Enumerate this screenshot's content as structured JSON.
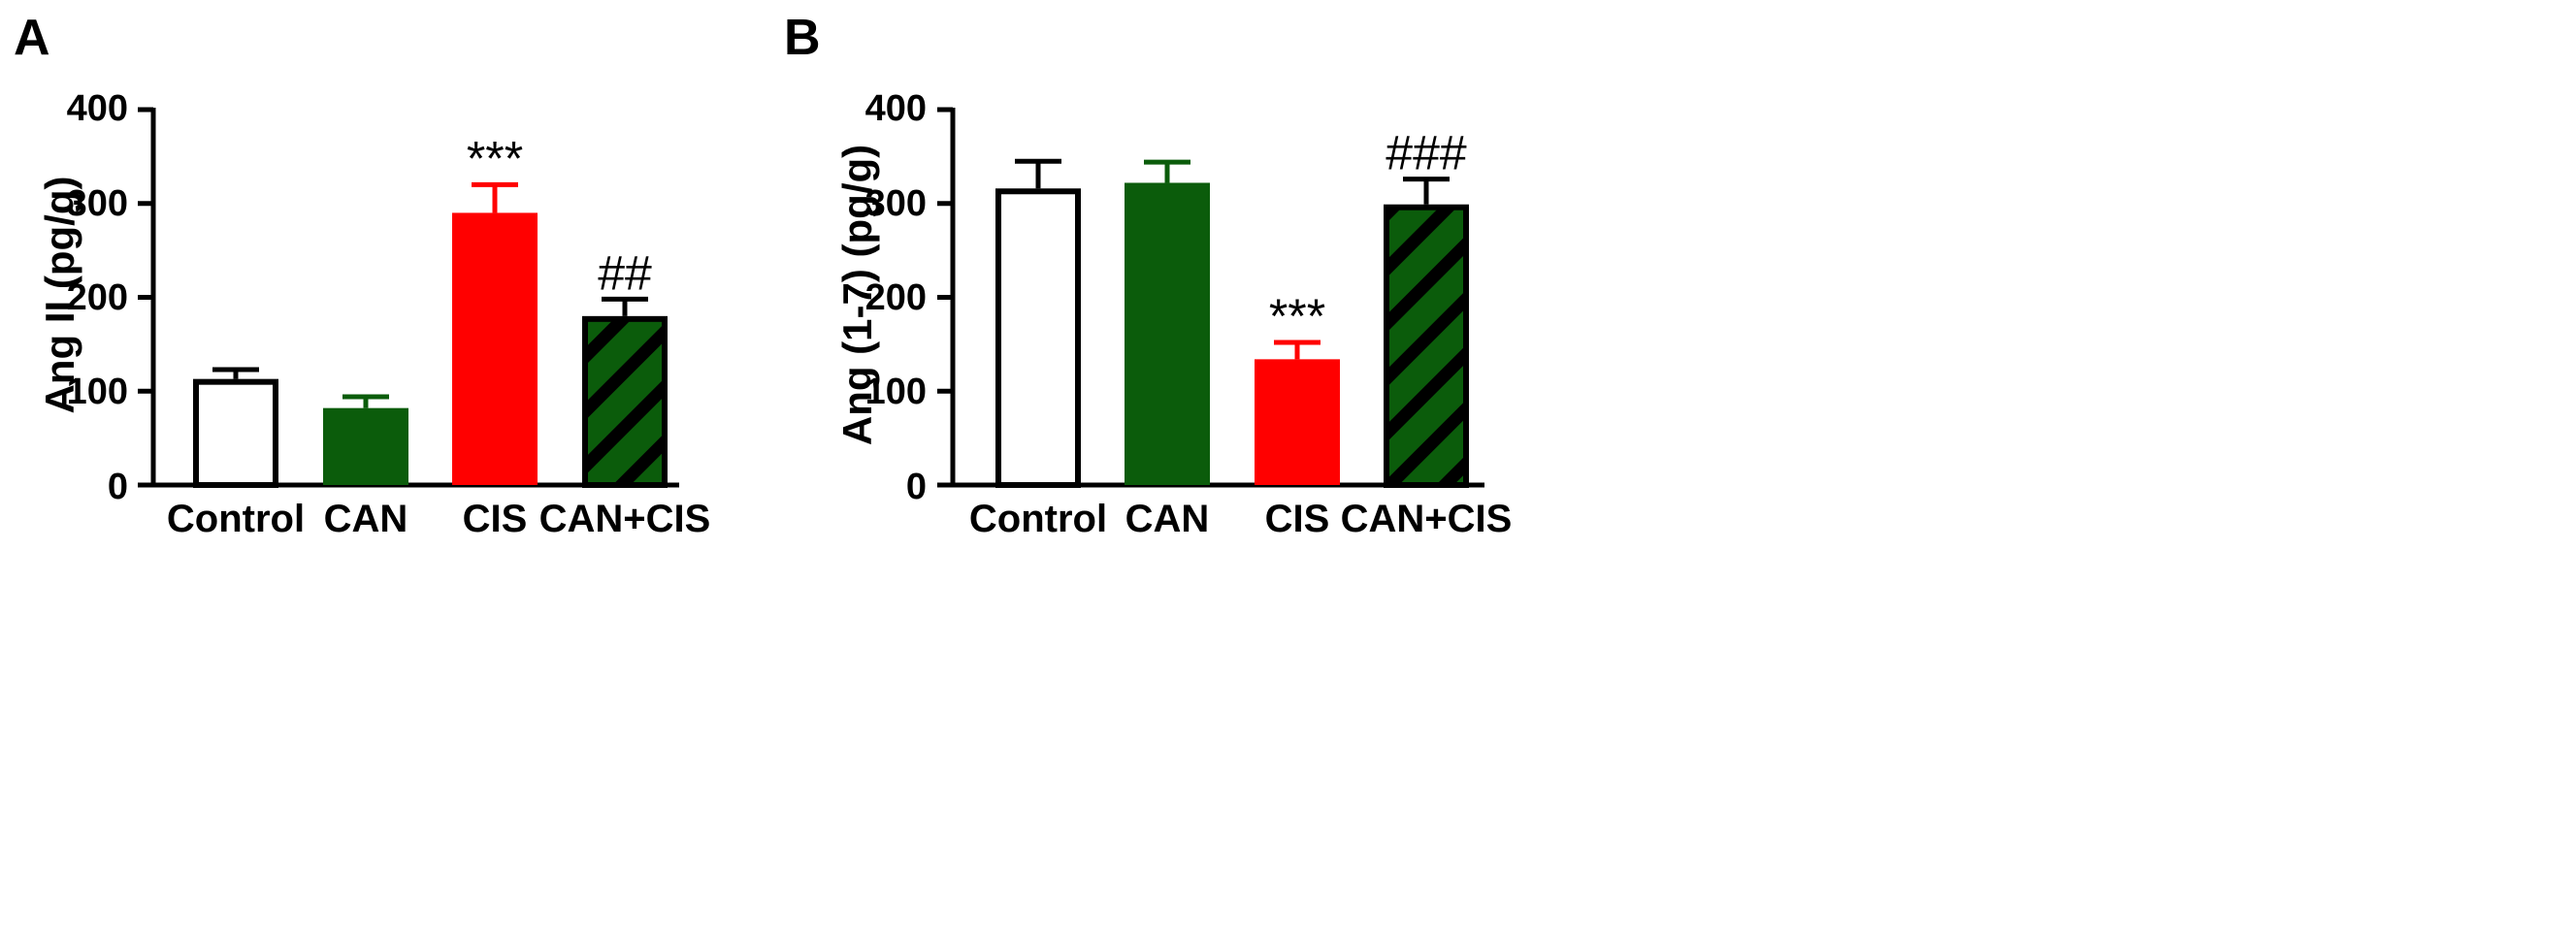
{
  "chart_data": [
    {
      "type": "bar",
      "panel_label": "A",
      "ylabel": "Ang II (pg/g)",
      "ylim": [
        0,
        400
      ],
      "yticks": [
        "0",
        "100",
        "200",
        "300",
        "400"
      ],
      "categories": [
        "Control",
        "CAN",
        "CIS",
        "CAN+CIS"
      ],
      "values": [
        113,
        82,
        290,
        180
      ],
      "errors": [
        10,
        12,
        30,
        18
      ],
      "significance": [
        "",
        "",
        "***",
        "##"
      ],
      "styles": [
        "open",
        "solid-green",
        "solid-red",
        "hatched-green"
      ]
    },
    {
      "type": "bar",
      "panel_label": "B",
      "ylabel": "Ang (1-7) (pg/g)",
      "ylim": [
        0,
        400
      ],
      "yticks": [
        "0",
        "100",
        "200",
        "300",
        "400"
      ],
      "categories": [
        "Control",
        "CAN",
        "CIS",
        "CAN+CIS"
      ],
      "values": [
        316,
        322,
        134,
        299
      ],
      "errors": [
        29,
        22,
        18,
        27
      ],
      "significance": [
        "",
        "",
        "***",
        "###"
      ],
      "styles": [
        "open",
        "solid-green",
        "solid-red",
        "hatched-green"
      ]
    }
  ],
  "colors": {
    "green": "#0b5c0b",
    "red": "#ff0000",
    "black": "#000000",
    "white": "#ffffff"
  }
}
